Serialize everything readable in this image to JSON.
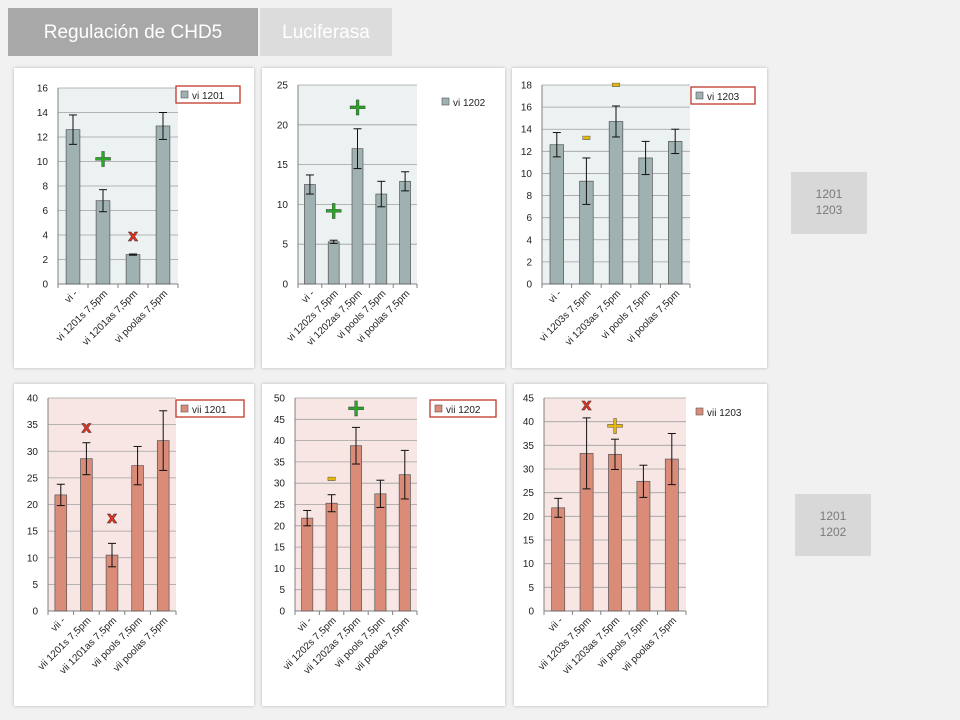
{
  "tabs": [
    "Regulación de CHD5",
    "Luciferasa"
  ],
  "notes": [
    [
      "1201",
      "1203"
    ],
    [
      "1201",
      "1202"
    ]
  ],
  "colors": {
    "gray_fill": "#9fb1b1",
    "gray_bg": "#ecf1f2",
    "red_fill": "#da8c79",
    "red_bg": "#f7e6e4",
    "plus": "#2aa52a",
    "x": "#e03020",
    "minus": "#e6b80f",
    "plus_yellow": "#e6b80f"
  },
  "chart_data": [
    {
      "type": "bar",
      "color": "gray",
      "title": "",
      "xlabel": "",
      "ylabel": "",
      "legend": "vi 1201",
      "legend_boxed": true,
      "ylim": [
        0,
        16
      ],
      "ticks": [
        0,
        2,
        4,
        6,
        8,
        10,
        12,
        14,
        16
      ],
      "categories": [
        "vi -",
        "vi 1201s 7,5pm",
        "vi 1201as 7,5pm",
        "vi poolas 7,5pm"
      ],
      "values": [
        12.6,
        6.8,
        2.4,
        12.9
      ],
      "errors": [
        1.2,
        0.9,
        0.05,
        1.1
      ],
      "marks": [
        {
          "cat": 1,
          "sym": "+",
          "kind": "plus",
          "above": 9.6
        },
        {
          "cat": 2,
          "sym": "x",
          "kind": "x",
          "above": 3.5
        }
      ]
    },
    {
      "type": "bar",
      "color": "gray",
      "title": "",
      "xlabel": "",
      "ylabel": "",
      "legend": "vi 1202",
      "legend_boxed": false,
      "ylim": [
        0,
        25
      ],
      "ticks": [
        0,
        5,
        10,
        15,
        20,
        25
      ],
      "categories": [
        "vi -",
        "vi 1202s 7,5pm",
        "vi 1202as 7,5pm",
        "vi pools 7,5pm",
        "vi poolas 7,5pm"
      ],
      "values": [
        12.5,
        5.3,
        17.0,
        11.3,
        12.9
      ],
      "errors": [
        1.2,
        0.2,
        2.5,
        1.6,
        1.2
      ],
      "marks": [
        {
          "cat": 1,
          "sym": "+",
          "kind": "plus",
          "above": 8.2
        },
        {
          "cat": 2,
          "sym": "+",
          "kind": "plus",
          "above": 21.2
        }
      ]
    },
    {
      "type": "bar",
      "color": "gray",
      "title": "",
      "xlabel": "",
      "ylabel": "",
      "legend": "vi 1203",
      "legend_boxed": true,
      "ylim": [
        0,
        18
      ],
      "ticks": [
        0,
        2,
        4,
        6,
        8,
        10,
        12,
        14,
        16,
        18
      ],
      "categories": [
        "vi -",
        "vi 1203s 7,5pm",
        "vi 1203as 7,5pm",
        "vi pools 7,5pm",
        "vi poolas 7,5pm"
      ],
      "values": [
        12.6,
        9.3,
        14.7,
        11.4,
        12.9
      ],
      "errors": [
        1.1,
        2.1,
        1.4,
        1.5,
        1.1
      ],
      "marks": [
        {
          "cat": 1,
          "sym": "-",
          "kind": "minus",
          "above": 12.6
        },
        {
          "cat": 2,
          "sym": "-",
          "kind": "minus",
          "above": 17.4
        }
      ]
    },
    {
      "type": "bar",
      "color": "red",
      "title": "",
      "xlabel": "",
      "ylabel": "",
      "legend": "vii 1201",
      "legend_boxed": true,
      "ylim": [
        0,
        40
      ],
      "ticks": [
        0,
        5,
        10,
        15,
        20,
        25,
        30,
        35,
        40
      ],
      "categories": [
        "vii -",
        "vii 1201s 7,5pm",
        "vii 1201as 7,5pm",
        "vii pools 7,5pm",
        "vii poolas 7,5pm"
      ],
      "values": [
        21.8,
        28.6,
        10.5,
        27.3,
        32.0
      ],
      "errors": [
        2.0,
        3.0,
        2.2,
        3.6,
        5.6
      ],
      "marks": [
        {
          "cat": 1,
          "sym": "x",
          "kind": "x",
          "above": 33.5
        },
        {
          "cat": 2,
          "sym": "x",
          "kind": "x",
          "above": 16.5
        }
      ]
    },
    {
      "type": "bar",
      "color": "red",
      "title": "",
      "xlabel": "",
      "ylabel": "",
      "legend": "vii 1202",
      "legend_boxed": true,
      "ylim": [
        0,
        50
      ],
      "ticks": [
        0,
        5,
        10,
        15,
        20,
        25,
        30,
        35,
        40,
        45,
        50
      ],
      "categories": [
        "vii -",
        "vii 1202s 7,5pm",
        "vii 1202as 7,5pm",
        "vii pools 7,5pm",
        "vii poolas 7,5pm"
      ],
      "values": [
        21.8,
        25.3,
        38.8,
        27.5,
        32.0
      ],
      "errors": [
        1.8,
        2.0,
        4.3,
        3.2,
        5.7
      ],
      "marks": [
        {
          "cat": 1,
          "sym": "-",
          "kind": "minus",
          "above": 29.5
        },
        {
          "cat": 2,
          "sym": "+",
          "kind": "plus",
          "above": 45.8
        }
      ]
    },
    {
      "type": "bar",
      "color": "red",
      "title": "",
      "xlabel": "",
      "ylabel": "",
      "legend": "vii 1203",
      "legend_boxed": false,
      "ylim": [
        0,
        45
      ],
      "ticks": [
        0,
        5,
        10,
        15,
        20,
        25,
        30,
        35,
        40,
        45
      ],
      "categories": [
        "vii -",
        "vii 1203s 7,5pm",
        "vii 1203as 7,5pm",
        "vii pools 7,5pm",
        "vii poolas 7,5pm"
      ],
      "values": [
        21.8,
        33.3,
        33.1,
        27.4,
        32.1
      ],
      "errors": [
        2.0,
        7.5,
        3.2,
        3.4,
        5.4
      ],
      "marks": [
        {
          "cat": 1,
          "sym": "x",
          "kind": "x",
          "above": 42.5
        },
        {
          "cat": 2,
          "sym": "+",
          "kind": "plus_yellow",
          "above": 37.5
        }
      ]
    }
  ]
}
